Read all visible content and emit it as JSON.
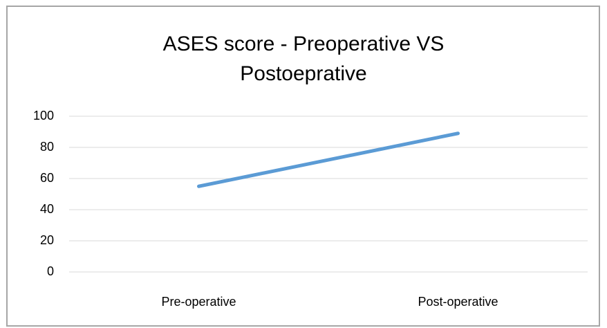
{
  "chart_data": {
    "type": "line",
    "title": "ASES score - Preoperative VS Postoeprative",
    "categories": [
      "Pre-operative",
      "Post-operative"
    ],
    "series": [
      {
        "name": "ASES score",
        "color": "#5b9bd5",
        "values": [
          55,
          89
        ]
      }
    ],
    "ylim": [
      0,
      100
    ],
    "yticks": [
      0,
      20,
      40,
      60,
      80,
      100
    ],
    "grid": true
  }
}
